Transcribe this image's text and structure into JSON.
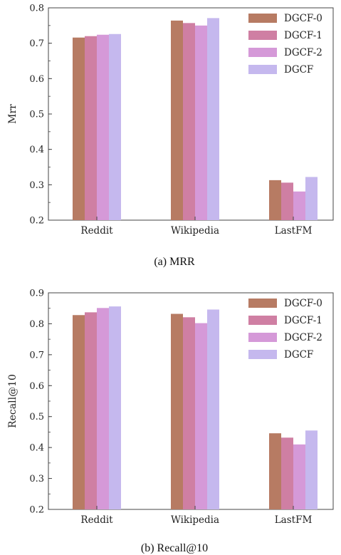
{
  "colors": {
    "DGCF-0": "#b77b63",
    "DGCF-1": "#cf7fa3",
    "DGCF-2": "#d599d8",
    "DGCF": "#c5b8ee"
  },
  "chart_data": [
    {
      "type": "bar",
      "caption": "(a)  MRR",
      "ylabel": "Mrr",
      "xlabel": "",
      "categories": [
        "Reddit",
        "Wikipedia",
        "LastFM"
      ],
      "series": [
        {
          "name": "DGCF-0",
          "values": [
            0.716,
            0.764,
            0.313
          ]
        },
        {
          "name": "DGCF-1",
          "values": [
            0.72,
            0.757,
            0.306
          ]
        },
        {
          "name": "DGCF-2",
          "values": [
            0.724,
            0.75,
            0.281
          ]
        },
        {
          "name": "DGCF",
          "values": [
            0.726,
            0.771,
            0.322
          ]
        }
      ],
      "ylim": [
        0.2,
        0.8
      ],
      "yticks": [
        "0.2",
        "0.3",
        "0.4",
        "0.5",
        "0.6",
        "0.7",
        "0.8"
      ],
      "legend_position": "top-right",
      "grid": false
    },
    {
      "type": "bar",
      "caption": "(b)  Recall@10",
      "ylabel": "Recall@10",
      "xlabel": "",
      "categories": [
        "Reddit",
        "Wikipedia",
        "LastFM"
      ],
      "series": [
        {
          "name": "DGCF-0",
          "values": [
            0.828,
            0.832,
            0.446
          ]
        },
        {
          "name": "DGCF-1",
          "values": [
            0.837,
            0.821,
            0.432
          ]
        },
        {
          "name": "DGCF-2",
          "values": [
            0.851,
            0.802,
            0.41
          ]
        },
        {
          "name": "DGCF",
          "values": [
            0.856,
            0.846,
            0.455
          ]
        }
      ],
      "ylim": [
        0.2,
        0.9
      ],
      "yticks": [
        "0.2",
        "0.3",
        "0.4",
        "0.5",
        "0.6",
        "0.7",
        "0.8",
        "0.9"
      ],
      "legend_position": "top-right",
      "grid": false
    }
  ]
}
